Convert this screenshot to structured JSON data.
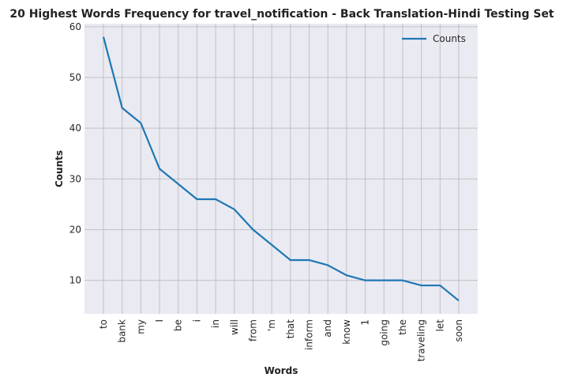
{
  "chart_data": {
    "type": "line",
    "title": "20 Highest Words Frequency for travel_notification - Back Translation-Hindi Testing Set",
    "xlabel": "Words",
    "ylabel": "Counts",
    "categories": [
      "to",
      "bank",
      "my",
      "I",
      "be",
      "i",
      "in",
      "will",
      "from",
      "'m",
      "that",
      "inform",
      "and",
      "know",
      "1",
      "going",
      "the",
      "traveling",
      "let",
      "soon"
    ],
    "series": [
      {
        "name": "Counts",
        "values": [
          58,
          44,
          41,
          32,
          29,
          26,
          26,
          24,
          20,
          17,
          14,
          14,
          13,
          11,
          10,
          10,
          10,
          9,
          9,
          6
        ]
      }
    ],
    "ylim": [
      3.4,
      60.6
    ],
    "yticks": [
      10,
      20,
      30,
      40,
      50,
      60
    ],
    "grid": true,
    "legend": "top-right",
    "colors": {
      "line": "#1f77b4",
      "plot_bg": "#eaeaf2",
      "grid": "#c0c0c4"
    }
  }
}
